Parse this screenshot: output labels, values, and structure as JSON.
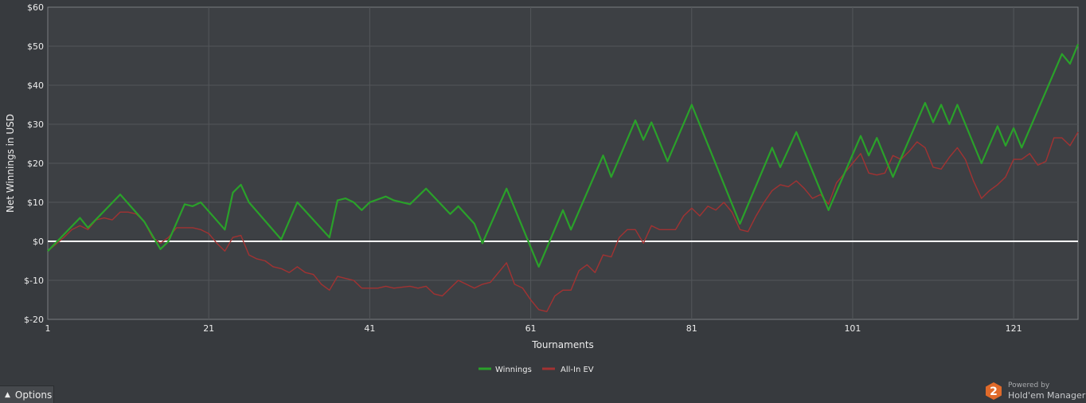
{
  "chart_data": {
    "type": "line",
    "xlabel": "Tournaments",
    "ylabel": "Net Winnings in USD",
    "xlim": [
      1,
      129
    ],
    "ylim": [
      -20,
      60
    ],
    "x_ticks": [
      "1",
      "21",
      "41",
      "61",
      "81",
      "101",
      "121"
    ],
    "y_ticks": [
      "$-20",
      "$-10",
      "$0",
      "$10",
      "$20",
      "$30",
      "$40",
      "$50",
      "$60"
    ],
    "grid": true,
    "legend_position": "bottom-center",
    "series": [
      {
        "name": "Winnings",
        "color": "#2aa12a",
        "points": [
          [
            1,
            -2.5
          ],
          [
            5,
            6
          ],
          [
            6,
            3.5
          ],
          [
            10,
            12
          ],
          [
            13,
            5
          ],
          [
            15,
            -2
          ],
          [
            16,
            0
          ],
          [
            18,
            9.5
          ],
          [
            19,
            9
          ],
          [
            20,
            10
          ],
          [
            23,
            3
          ],
          [
            24,
            12.5
          ],
          [
            25,
            14.5
          ],
          [
            26,
            10
          ],
          [
            30,
            0.5
          ],
          [
            32,
            10
          ],
          [
            36,
            1
          ],
          [
            37,
            10.5
          ],
          [
            38,
            11
          ],
          [
            39,
            10
          ],
          [
            40,
            8
          ],
          [
            41,
            10
          ],
          [
            43,
            11.5
          ],
          [
            44,
            10.5
          ],
          [
            46,
            9.5
          ],
          [
            48,
            13.5
          ],
          [
            51,
            7
          ],
          [
            52,
            9
          ],
          [
            54,
            4.5
          ],
          [
            55,
            -0.5
          ],
          [
            58,
            13.5
          ],
          [
            62,
            -6.5
          ],
          [
            65,
            8
          ],
          [
            66,
            3
          ],
          [
            70,
            22
          ],
          [
            71,
            16.5
          ],
          [
            74,
            31
          ],
          [
            75,
            26
          ],
          [
            76,
            30.5
          ],
          [
            78,
            20.5
          ],
          [
            81,
            35
          ],
          [
            87,
            4.5
          ],
          [
            91,
            24
          ],
          [
            92,
            19
          ],
          [
            94,
            28
          ],
          [
            98,
            8
          ],
          [
            102,
            27
          ],
          [
            103,
            22
          ],
          [
            104,
            26.5
          ],
          [
            106,
            16.5
          ],
          [
            108,
            26
          ],
          [
            110,
            35.5
          ],
          [
            111,
            30.5
          ],
          [
            112,
            35
          ],
          [
            113,
            30
          ],
          [
            114,
            35
          ],
          [
            117,
            20
          ],
          [
            119,
            29.5
          ],
          [
            120,
            24.5
          ],
          [
            121,
            29
          ],
          [
            122,
            24
          ],
          [
            127,
            48
          ],
          [
            128,
            45.5
          ],
          [
            129,
            50.5
          ]
        ]
      },
      {
        "name": "All-In EV",
        "color": "#a23232",
        "points": [
          [
            1,
            -2.5
          ],
          [
            3,
            1
          ],
          [
            4,
            3
          ],
          [
            5,
            4
          ],
          [
            6,
            3
          ],
          [
            7,
            5.5
          ],
          [
            8,
            6
          ],
          [
            9,
            5.5
          ],
          [
            10,
            7.5
          ],
          [
            11,
            7.5
          ],
          [
            12,
            7
          ],
          [
            13,
            5
          ],
          [
            14,
            1
          ],
          [
            15,
            -0.5
          ],
          [
            16,
            1
          ],
          [
            17,
            3.5
          ],
          [
            18,
            3.5
          ],
          [
            19,
            3.5
          ],
          [
            20,
            3
          ],
          [
            21,
            2
          ],
          [
            22,
            -0.5
          ],
          [
            23,
            -2.5
          ],
          [
            24,
            1
          ],
          [
            25,
            1.5
          ],
          [
            26,
            -3.5
          ],
          [
            27,
            -4.5
          ],
          [
            28,
            -5
          ],
          [
            29,
            -6.5
          ],
          [
            30,
            -7
          ],
          [
            31,
            -8
          ],
          [
            32,
            -6.5
          ],
          [
            33,
            -8
          ],
          [
            34,
            -8.5
          ],
          [
            35,
            -11
          ],
          [
            36,
            -12.5
          ],
          [
            37,
            -9
          ],
          [
            38,
            -9.5
          ],
          [
            39,
            -10
          ],
          [
            40,
            -12
          ],
          [
            42,
            -12
          ],
          [
            43,
            -11.5
          ],
          [
            44,
            -12
          ],
          [
            46,
            -11.5
          ],
          [
            47,
            -12
          ],
          [
            48,
            -11.5
          ],
          [
            49,
            -13.5
          ],
          [
            50,
            -14
          ],
          [
            51,
            -12
          ],
          [
            52,
            -10
          ],
          [
            53,
            -11
          ],
          [
            54,
            -12
          ],
          [
            55,
            -11
          ],
          [
            56,
            -10.5
          ],
          [
            57,
            -8
          ],
          [
            58,
            -5.5
          ],
          [
            59,
            -11
          ],
          [
            60,
            -12
          ],
          [
            61,
            -15
          ],
          [
            62,
            -17.5
          ],
          [
            63,
            -18
          ],
          [
            64,
            -14
          ],
          [
            65,
            -12.5
          ],
          [
            66,
            -12.5
          ],
          [
            67,
            -7.5
          ],
          [
            68,
            -6
          ],
          [
            69,
            -8
          ],
          [
            70,
            -3.5
          ],
          [
            71,
            -4
          ],
          [
            72,
            1
          ],
          [
            73,
            3
          ],
          [
            74,
            3
          ],
          [
            75,
            -0.5
          ],
          [
            76,
            4
          ],
          [
            77,
            3
          ],
          [
            78,
            3
          ],
          [
            79,
            3
          ],
          [
            80,
            6.5
          ],
          [
            81,
            8.5
          ],
          [
            82,
            6.5
          ],
          [
            83,
            9
          ],
          [
            84,
            8
          ],
          [
            85,
            10
          ],
          [
            86,
            7.5
          ],
          [
            87,
            3
          ],
          [
            88,
            2.5
          ],
          [
            89,
            6.5
          ],
          [
            90,
            10
          ],
          [
            91,
            13
          ],
          [
            92,
            14.5
          ],
          [
            93,
            14
          ],
          [
            94,
            15.5
          ],
          [
            95,
            13.5
          ],
          [
            96,
            11
          ],
          [
            97,
            12
          ],
          [
            98,
            9.5
          ],
          [
            99,
            15
          ],
          [
            100,
            17.5
          ],
          [
            101,
            20
          ],
          [
            102,
            22.5
          ],
          [
            103,
            17.5
          ],
          [
            104,
            17
          ],
          [
            105,
            17.5
          ],
          [
            106,
            22
          ],
          [
            107,
            21
          ],
          [
            108,
            23
          ],
          [
            109,
            25.5
          ],
          [
            110,
            24
          ],
          [
            111,
            19
          ],
          [
            112,
            18.5
          ],
          [
            113,
            21.5
          ],
          [
            114,
            24
          ],
          [
            115,
            21
          ],
          [
            116,
            15.5
          ],
          [
            117,
            11
          ],
          [
            118,
            13
          ],
          [
            119,
            14.5
          ],
          [
            120,
            16.5
          ],
          [
            121,
            21
          ],
          [
            122,
            21
          ],
          [
            123,
            22.5
          ],
          [
            124,
            19.5
          ],
          [
            125,
            20.5
          ],
          [
            126,
            26.5
          ],
          [
            127,
            26.5
          ],
          [
            128,
            24.5
          ],
          [
            129,
            28
          ]
        ]
      }
    ]
  },
  "ui": {
    "options_label": "Options",
    "powered_by": "Powered by",
    "brand_name": "Hold'em Manager",
    "badge_digit": "2",
    "colors": {
      "background": "#373a3e",
      "plot_background": "#3d4044",
      "grid": "#53565a",
      "zero_line": "#ffffff",
      "badge": "#e06a2a"
    }
  }
}
